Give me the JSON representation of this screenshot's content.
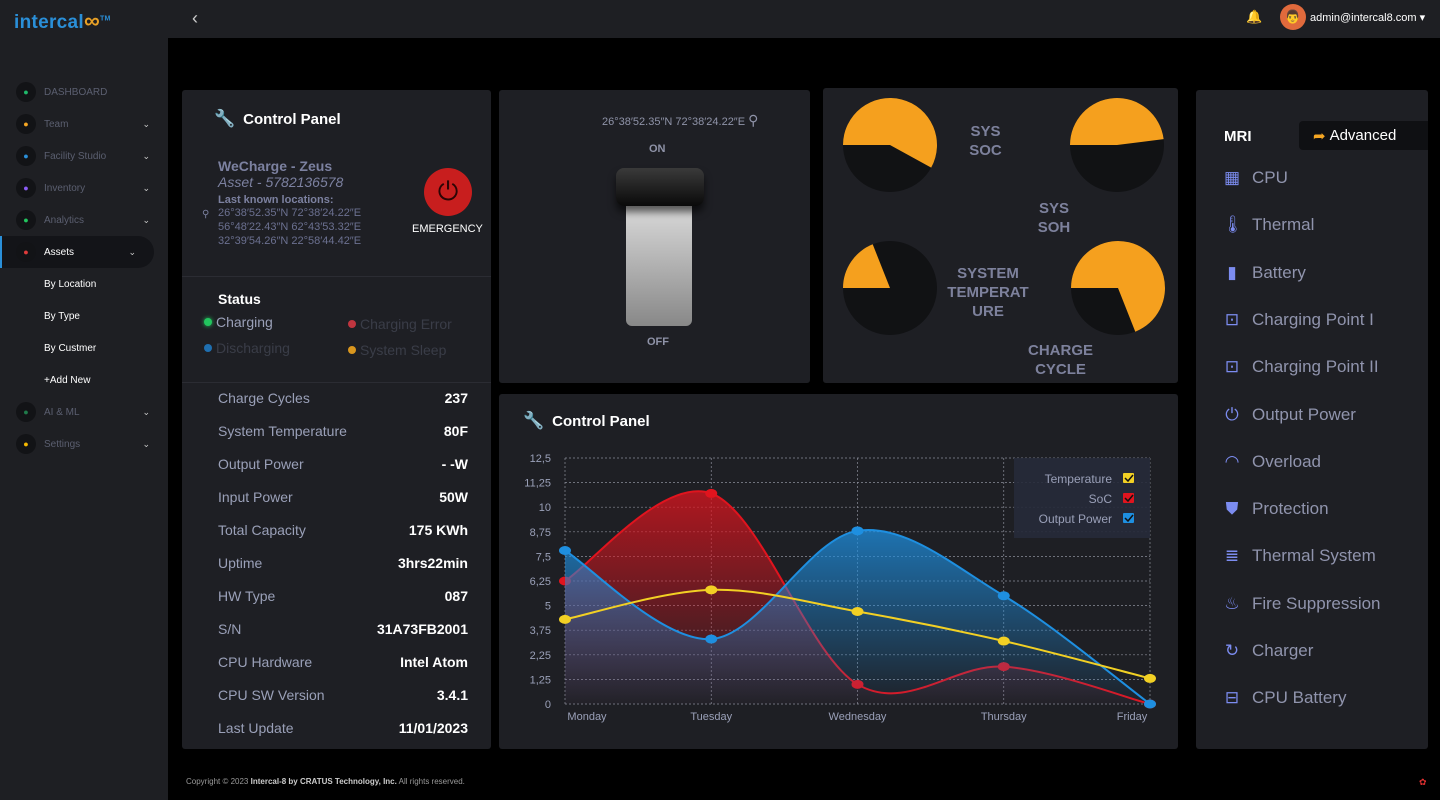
{
  "brand": {
    "name": "intercal",
    "mark": "∞",
    "tm": "TM"
  },
  "sidebar": {
    "items": [
      {
        "label": "DASHBOARD",
        "icon": "gauge-icon",
        "color": "#1fb86a"
      },
      {
        "label": "Team",
        "icon": "person-icon",
        "color": "#f5a623"
      },
      {
        "label": "Facility Studio",
        "icon": "building-icon",
        "color": "#2a8fd8"
      },
      {
        "label": "Inventory",
        "icon": "bar-chart-icon",
        "color": "#8b5cf6"
      },
      {
        "label": "Analytics",
        "icon": "clipboard-icon",
        "color": "#22c55e"
      },
      {
        "label": "Assets",
        "icon": "bank-icon",
        "color": "#e03b3b"
      },
      {
        "label": "AI & ML",
        "icon": "chip-icon",
        "color": "#1f7a4a"
      },
      {
        "label": "Settings",
        "icon": "gear-icon",
        "color": "#f5b800"
      }
    ],
    "sub_items": [
      "By Location",
      "By Type",
      "By Custmer",
      "+Add New"
    ]
  },
  "topbar": {
    "user": "admin@intercal8.com"
  },
  "control": {
    "title": "Control Panel",
    "asset_name": "WeCharge - Zeus",
    "asset_id": "Asset - 5782136578",
    "loc_label": "Last known locations:",
    "locations": [
      "26°38′52.35″N 72°38′24.22″E",
      "56°48′22.43″N 62°43′53.32″E",
      "32°39′54.26″N 22°58′44.42″E"
    ],
    "emergency": "EMERGENCY",
    "status_title": "Status",
    "statuses": [
      {
        "label": "Charging",
        "color": "#22c55e",
        "active": true
      },
      {
        "label": "Charging  Error",
        "color": "#c0353f",
        "active": false
      },
      {
        "label": "Discharging",
        "color": "#1f6fb0",
        "active": false
      },
      {
        "label": "System Sleep",
        "color": "#d9961e",
        "active": false
      }
    ],
    "specs": [
      [
        "Charge Cycles",
        "237"
      ],
      [
        "System Temperature",
        "80F"
      ],
      [
        "Output Power",
        "- -W"
      ],
      [
        "Input Power",
        "50W"
      ],
      [
        "Total Capacity",
        "175 KWh"
      ],
      [
        "Uptime",
        "3hrs22min"
      ],
      [
        "HW Type",
        "087"
      ],
      [
        "S/N",
        "31A73FB2001"
      ],
      [
        "CPU Hardware",
        "Intel Atom"
      ],
      [
        "CPU SW Version",
        "3.4.1"
      ],
      [
        "Last Update",
        "11/01/2023"
      ]
    ]
  },
  "switch": {
    "coord": "26°38′52.35″N 72°38′24.22″E",
    "on": "ON",
    "off": "OFF",
    "state": "off"
  },
  "gauges": [
    {
      "label": "SYS SOC",
      "value": 0.58
    },
    {
      "label": "SYS SOH",
      "value": 0.48
    },
    {
      "label": "SYSTEM TEMPERAT URE",
      "value": 0.19
    },
    {
      "label": "CHARGE CYCLE",
      "value": 0.69
    }
  ],
  "gauge_color": "#f5a01e",
  "chart_title": "Control Panel",
  "chart_data": {
    "type": "area",
    "categories": [
      "Monday",
      "Tuesday",
      "Wednesday",
      "Thursday",
      "Friday"
    ],
    "yticks": [
      "12,5",
      "11,25",
      "10",
      "8,75",
      "7,5",
      "6,25",
      "5",
      "3,75",
      "2,25",
      "1,25",
      "0"
    ],
    "ylim": [
      0,
      12.5
    ],
    "grid": true,
    "legend": "top-right",
    "series": [
      {
        "name": "Temperature",
        "color": "#f2d024",
        "values": [
          4.3,
          5.8,
          4.7,
          3.2,
          1.3
        ],
        "fill": false
      },
      {
        "name": "SoC",
        "color": "#e0141e",
        "values": [
          6.25,
          10.7,
          1.0,
          1.9,
          0
        ],
        "fill": true
      },
      {
        "name": "Output Power",
        "color": "#1e8fe0",
        "values": [
          7.8,
          3.3,
          8.8,
          5.5,
          0
        ],
        "fill": true
      }
    ]
  },
  "mri": {
    "title": "MRI",
    "advanced": "Advanced",
    "items": [
      {
        "label": "CPU",
        "icon": "cpu-icon",
        "g": "▦"
      },
      {
        "label": "Thermal",
        "icon": "thermometer-icon",
        "g": "🌡"
      },
      {
        "label": "Battery",
        "icon": "battery-icon",
        "g": "▮"
      },
      {
        "label": "Charging Point I",
        "icon": "plug-icon",
        "g": "⊡"
      },
      {
        "label": "Charging Point II",
        "icon": "plug-icon",
        "g": "⊡"
      },
      {
        "label": "Output Power",
        "icon": "power-icon",
        "g": "⏻"
      },
      {
        "label": "Overload",
        "icon": "gauge-icon",
        "g": "◠"
      },
      {
        "label": "Protection",
        "icon": "shield-icon",
        "g": "⛊"
      },
      {
        "label": "Thermal System",
        "icon": "thermal-system-icon",
        "g": "≣"
      },
      {
        "label": "Fire Suppression",
        "icon": "fire-icon",
        "g": "♨"
      },
      {
        "label": "Charger",
        "icon": "refresh-icon",
        "g": "↻"
      },
      {
        "label": "CPU Battery",
        "icon": "car-battery-icon",
        "g": "⊟"
      }
    ]
  },
  "footer": {
    "prefix": "Copyright © 2023 ",
    "company": "Intercal-8 by CRATUS Technology, Inc.",
    "suffix": " All rights reserved."
  }
}
